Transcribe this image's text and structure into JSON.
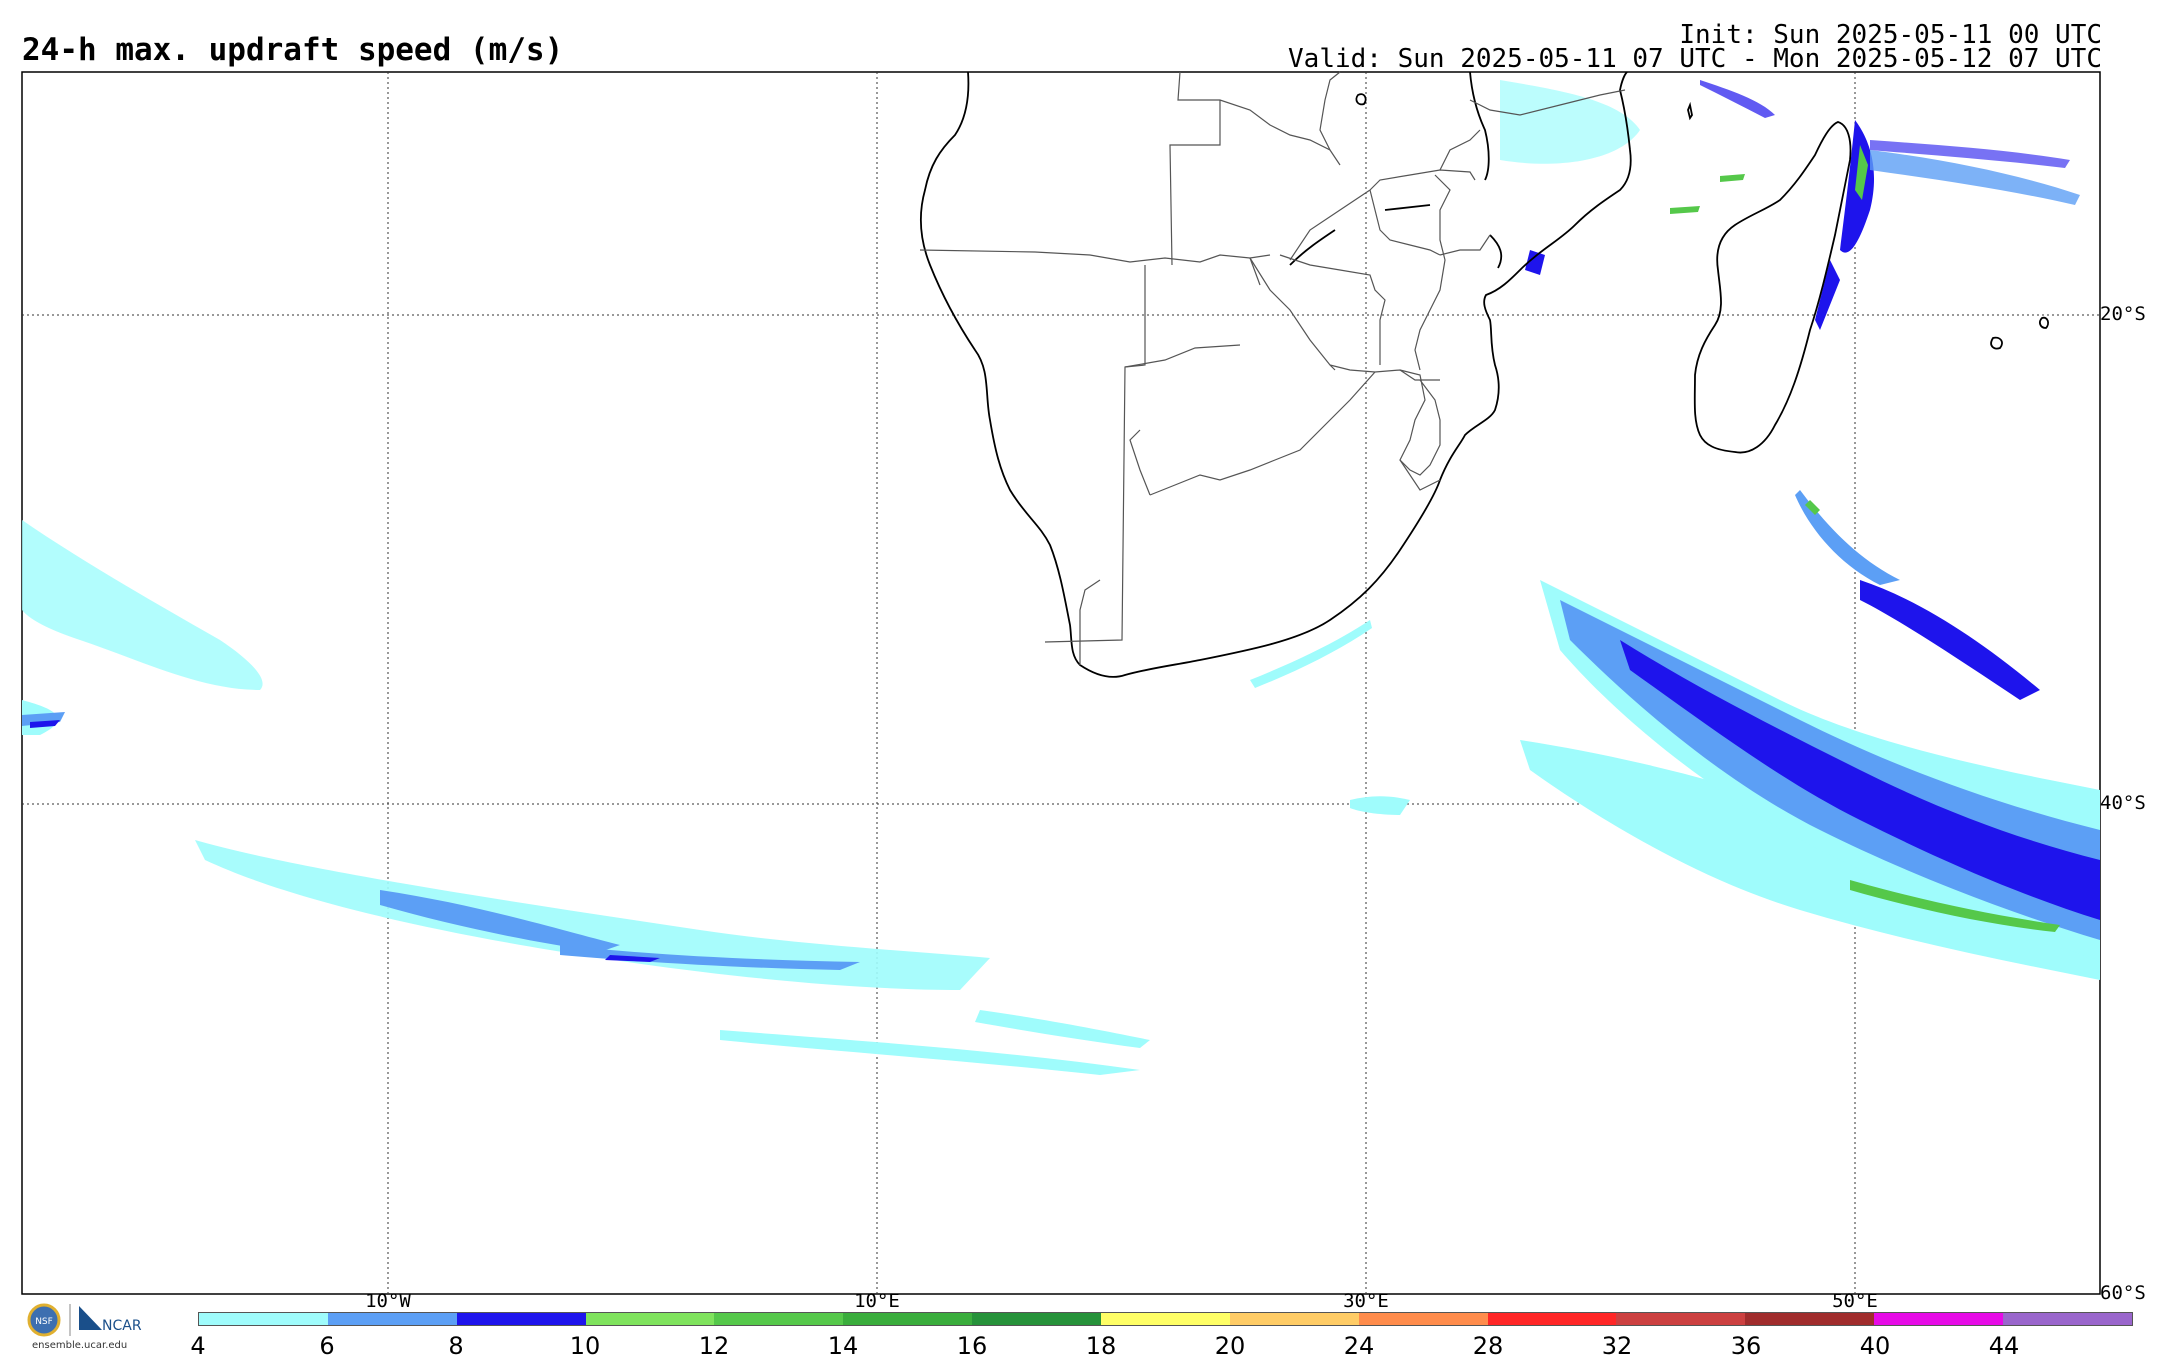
{
  "header": {
    "title": "24-h max. updraft speed (m/s)",
    "init": "Init: Sun 2025-05-11 00 UTC",
    "valid": "Valid: Sun 2025-05-11 07 UTC - Mon 2025-05-12 07 UTC"
  },
  "map": {
    "lat_labels": [
      "20°S",
      "40°S",
      "60°S"
    ],
    "lon_labels": [
      "10°W",
      "10°E",
      "30°E",
      "50°E"
    ]
  },
  "colorbar": {
    "ticks": [
      "4",
      "6",
      "8",
      "10",
      "12",
      "14",
      "16",
      "18",
      "20",
      "24",
      "28",
      "32",
      "36",
      "40",
      "44"
    ],
    "colors": [
      "#9ffcfc",
      "#5c9ff5",
      "#1e14ec",
      "#7fe35d",
      "#55c84a",
      "#3aad3c",
      "#26923a",
      "#ffff66",
      "#ffcc66",
      "#ff8c4c",
      "#ff2626",
      "#cc4040",
      "#a02c2c",
      "#e60ae6",
      "#9a66cc"
    ]
  },
  "logo": {
    "nsf": "NSF",
    "ncar": "NCAR",
    "url": "ensemble.ucar.edu"
  }
}
